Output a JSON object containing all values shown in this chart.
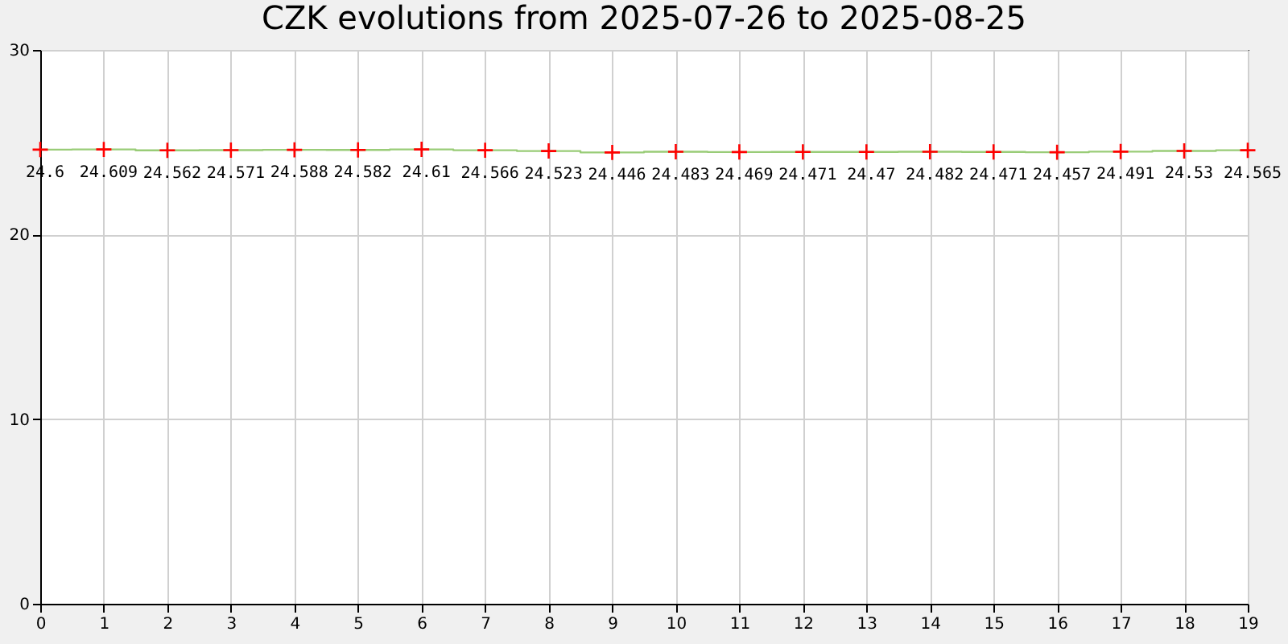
{
  "chart_data": {
    "type": "step",
    "title": "CZK evolutions from 2025-07-26 to 2025-08-25",
    "x": [
      0,
      1,
      2,
      3,
      4,
      5,
      6,
      7,
      8,
      9,
      10,
      11,
      12,
      13,
      14,
      15,
      16,
      17,
      18,
      19
    ],
    "series": [
      {
        "color": "#99cc77",
        "values": [
          24.6,
          24.609,
          24.562,
          24.571,
          24.588,
          24.582,
          24.61,
          24.566,
          24.523,
          24.446,
          24.483,
          24.469,
          24.471,
          24.47,
          24.482,
          24.471,
          24.457,
          24.491,
          24.53,
          24.565
        ]
      }
    ],
    "xlim": [
      0,
      19
    ],
    "xticks": [
      0,
      1,
      2,
      3,
      4,
      5,
      6,
      7,
      8,
      9,
      10,
      11,
      12,
      13,
      14,
      15,
      16,
      17,
      18,
      19
    ],
    "ylim": [
      0,
      30
    ],
    "yticks": [
      0,
      10,
      20,
      30
    ],
    "grid": true,
    "marker": "cross",
    "data_labels": true
  }
}
